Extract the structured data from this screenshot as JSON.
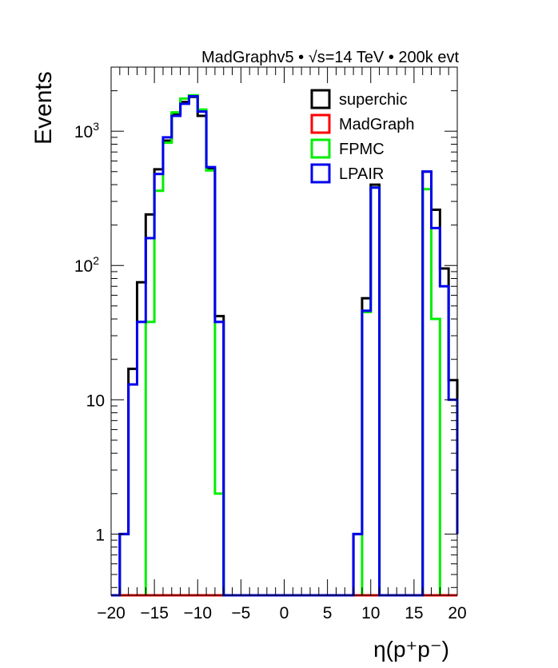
{
  "chart_data": {
    "type": "histogram-step",
    "title": "MadGraphv5 • √s=14 TeV • 200k evt",
    "xlabel": "η(p⁺p⁻)",
    "ylabel": "Events",
    "xlim": [
      -20,
      20
    ],
    "ylim": [
      0.35,
      3000
    ],
    "yscale": "log",
    "grid": false,
    "legend_position": "top-right",
    "bin_edges": [
      -20,
      -19,
      -18,
      -17,
      -16,
      -15,
      -14,
      -13,
      -12,
      -11,
      -10,
      -9,
      -8,
      -7,
      -6,
      -5,
      -4,
      -3,
      -2,
      -1,
      0,
      1,
      2,
      3,
      4,
      5,
      6,
      7,
      8,
      9,
      10,
      11,
      12,
      13,
      14,
      15,
      16,
      17,
      18,
      19,
      20
    ],
    "x_ticks": [
      {
        "value": -20,
        "label": "−20"
      },
      {
        "value": -15,
        "label": "−15"
      },
      {
        "value": -10,
        "label": "−10"
      },
      {
        "value": -5,
        "label": "−5"
      },
      {
        "value": 0,
        "label": "0"
      },
      {
        "value": 5,
        "label": "5"
      },
      {
        "value": 10,
        "label": "10"
      },
      {
        "value": 15,
        "label": "15"
      },
      {
        "value": 20,
        "label": "20"
      }
    ],
    "y_ticks": [
      {
        "value": 1,
        "base": "1",
        "exp": ""
      },
      {
        "value": 10,
        "base": "10",
        "exp": ""
      },
      {
        "value": 100,
        "base": "10",
        "exp": "2"
      },
      {
        "value": 1000,
        "base": "10",
        "exp": "3"
      }
    ],
    "series": [
      {
        "name": "superchic",
        "color": "#000000",
        "values": [
          0,
          1,
          17,
          75,
          240,
          520,
          850,
          1350,
          1650,
          1800,
          1300,
          520,
          42,
          0,
          0,
          0,
          0,
          0,
          0,
          0,
          0,
          0,
          0,
          0,
          0,
          0,
          0,
          0,
          1,
          57,
          400,
          0,
          0,
          0,
          0,
          0,
          500,
          260,
          95,
          14,
          1
        ]
      },
      {
        "name": "MadGraph",
        "color": "#ff0000",
        "values": [
          0,
          0,
          0,
          0,
          0,
          0,
          0,
          0,
          0,
          0,
          0,
          0,
          0,
          0,
          0,
          0,
          0,
          0,
          0,
          0,
          0,
          0,
          0,
          0,
          0,
          0,
          0,
          0,
          0,
          0,
          0,
          0,
          0,
          0,
          0,
          0,
          0,
          0,
          0,
          0,
          0
        ]
      },
      {
        "name": "FPMC",
        "color": "#00ee00",
        "values": [
          0,
          0,
          0,
          0,
          38,
          360,
          820,
          1380,
          1750,
          1850,
          1450,
          510,
          2,
          0,
          0,
          0,
          0,
          0,
          0,
          0,
          0,
          0,
          0,
          0,
          0,
          0,
          0,
          0,
          0,
          45,
          380,
          0,
          0,
          0,
          0,
          0,
          370,
          40,
          0,
          0,
          0
        ]
      },
      {
        "name": "LPAIR",
        "color": "#0000ee",
        "values": [
          0,
          1,
          13,
          38,
          160,
          480,
          900,
          1300,
          1600,
          1820,
          1400,
          540,
          38,
          0,
          0,
          0,
          0,
          0,
          0,
          0,
          0,
          0,
          0,
          0,
          0,
          0,
          0,
          0,
          1,
          46,
          380,
          0,
          0,
          0,
          0,
          0,
          500,
          190,
          70,
          10,
          1
        ]
      }
    ]
  }
}
